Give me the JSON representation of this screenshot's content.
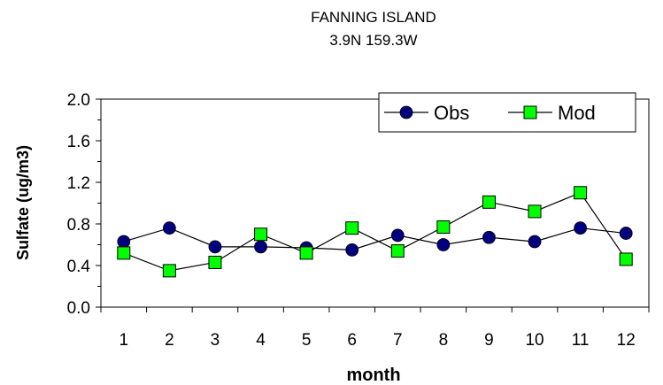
{
  "chart_data": {
    "type": "line",
    "title": "FANNING ISLAND",
    "subtitle": "3.9N  159.3W",
    "xlabel": "month",
    "ylabel": "Sulfate (ug/m3)",
    "categories": [
      "1",
      "2",
      "3",
      "4",
      "5",
      "6",
      "7",
      "8",
      "9",
      "10",
      "11",
      "12"
    ],
    "ylim": [
      0,
      2.0
    ],
    "yticks": [
      "0.0",
      "0.4",
      "0.8",
      "1.2",
      "1.6",
      "2.0"
    ],
    "grid": false,
    "legend_position": "top-right",
    "series": [
      {
        "name": "Obs",
        "marker": "circle",
        "color": "#00007f",
        "values": [
          0.63,
          0.76,
          0.58,
          0.58,
          0.57,
          0.55,
          0.69,
          0.6,
          0.67,
          0.63,
          0.76,
          0.71
        ]
      },
      {
        "name": "Mod",
        "marker": "square",
        "color": "#00ff00",
        "values": [
          0.52,
          0.35,
          0.43,
          0.7,
          0.52,
          0.76,
          0.54,
          0.77,
          1.01,
          0.92,
          1.1,
          0.46
        ]
      }
    ]
  }
}
